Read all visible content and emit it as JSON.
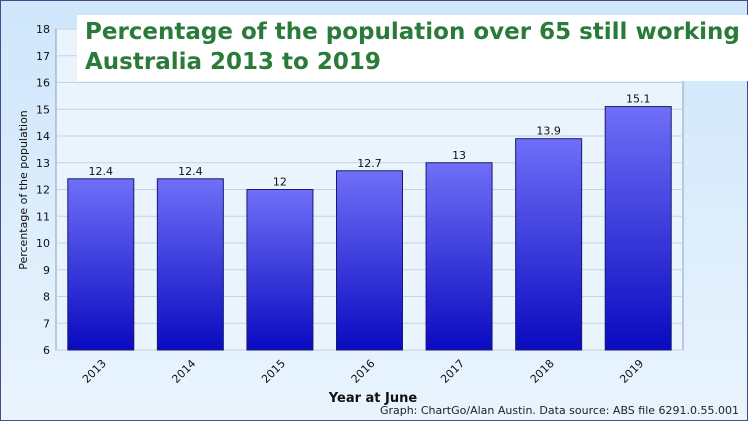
{
  "chart_data": {
    "type": "bar",
    "title": [
      "Percentage of the population over 65 still working",
      "Australia 2013 to 2019"
    ],
    "xlabel": "Year at June",
    "ylabel": "Percentage of the population",
    "categories": [
      "2013",
      "2014",
      "2015",
      "2016",
      "2017",
      "2018",
      "2019"
    ],
    "values": [
      12.4,
      12.4,
      12,
      12.7,
      13,
      13.9,
      15.1
    ],
    "value_labels": [
      "12.4",
      "12.4",
      "12",
      "12.7",
      "13",
      "13.9",
      "15.1"
    ],
    "ylim": [
      6,
      18
    ],
    "yticks": [
      "6",
      "7",
      "8",
      "9",
      "10",
      "11",
      "12",
      "13",
      "14",
      "15",
      "16",
      "17",
      "18"
    ],
    "grid": true,
    "bar_color_top": "#6f6ff8",
    "bar_color_bottom": "#0a0ac0",
    "title_color": "#2a7a3a"
  },
  "credit": "Graph: ChartGo/Alan Austin. Data source: ABS file 6291.0.55.001"
}
